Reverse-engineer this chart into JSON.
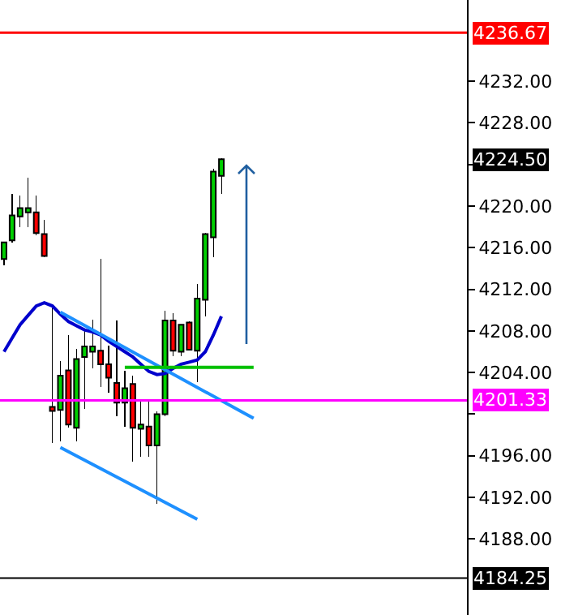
{
  "chart_data": {
    "type": "candlestick",
    "categories": [
      null,
      null,
      null,
      null,
      null,
      null,
      null,
      null,
      null,
      null,
      null,
      null,
      null,
      null,
      null,
      null,
      null,
      null,
      null,
      null,
      null,
      null,
      null,
      null,
      null,
      null,
      null,
      null,
      null,
      null,
      null,
      null,
      null,
      null,
      null,
      null,
      null,
      null,
      null,
      null,
      null,
      null,
      null,
      null,
      null,
      null,
      null,
      null,
      null,
      null,
      null,
      null,
      null,
      null,
      null,
      null,
      null,
      null
    ],
    "ohlc": [
      [
        4214.9,
        4216.5,
        4214.3,
        4216.5
      ],
      [
        4216.7,
        4221.2,
        4216.5,
        4219.1
      ],
      [
        4219.0,
        4221.0,
        4218.0,
        4219.8
      ],
      [
        4219.4,
        4222.7,
        4218.0,
        4219.8
      ],
      [
        4219.4,
        4221.0,
        4217.2,
        4217.4
      ],
      [
        4217.3,
        4218.7,
        4215.1,
        4215.2
      ],
      [
        4200.7,
        4210.2,
        4197.2,
        4200.3
      ],
      [
        4200.4,
        4205.1,
        4197.4,
        4203.7
      ],
      [
        4204.2,
        4207.6,
        4198.7,
        4199.0
      ],
      [
        4198.7,
        4206.3,
        4197.4,
        4205.3
      ],
      [
        4205.5,
        4208.2,
        4200.5,
        4206.5
      ],
      [
        4206.0,
        4209.1,
        4204.4,
        4206.5
      ],
      [
        4206.1,
        4214.9,
        4202.6,
        4204.8
      ],
      [
        4204.8,
        4206.6,
        4202.1,
        4203.5
      ],
      [
        4203.0,
        4209.0,
        4199.8,
        4201.1
      ],
      [
        4201.1,
        4204.2,
        4198.8,
        4202.5
      ],
      [
        4202.9,
        4203.7,
        4195.4,
        4198.7
      ],
      [
        4198.6,
        4201.3,
        4195.9,
        4199.0
      ],
      [
        4198.8,
        4201.3,
        4195.9,
        4197.0
      ],
      [
        4197.0,
        4200.3,
        4191.4,
        4200.0
      ],
      [
        4200.0,
        4209.9,
        4199.8,
        4209.0
      ],
      [
        4209.0,
        4209.7,
        4205.6,
        4206.1
      ],
      [
        4206.0,
        4208.6,
        4205.6,
        4208.6
      ],
      [
        4208.8,
        4208.9,
        4206.1,
        4206.2
      ],
      [
        4206.1,
        4212.5,
        4203.1,
        4211.1
      ],
      [
        4211.0,
        4217.4,
        4209.4,
        4217.3
      ],
      [
        4217.0,
        4223.6,
        4215.1,
        4223.3
      ],
      [
        4222.9,
        4224.6,
        4221.2,
        4224.5
      ],
      null,
      null,
      null,
      null,
      null,
      null,
      null,
      null,
      null,
      null,
      null,
      null,
      null,
      null,
      null,
      null,
      null,
      null,
      null,
      null,
      null,
      null,
      null,
      null,
      null,
      null,
      null,
      null,
      null,
      null
    ],
    "series": [
      {
        "type": "line",
        "color": "#0000cc",
        "values": [
          4206.0,
          4207.3,
          4208.6,
          4209.5,
          4210.4,
          4210.7,
          4210.4,
          4209.6,
          4208.9,
          4208.5,
          4208.1,
          4207.9,
          4207.6,
          4207.0,
          4206.5,
          4206.0,
          4205.5,
          4204.8,
          4204.1,
          4203.8,
          4203.9,
          4204.4,
          4204.8,
          4205.0,
          4205.2,
          4206.0,
          4207.6,
          4209.4,
          null,
          null,
          null,
          null,
          null,
          null,
          null,
          null,
          null,
          null,
          null,
          null,
          null,
          null,
          null,
          null,
          null,
          null,
          null,
          null,
          null,
          null,
          null,
          null,
          null,
          null,
          null,
          null,
          null,
          null
        ]
      },
      {
        "type": "line",
        "color": "#1e90ff",
        "values": [
          null,
          null,
          null,
          null,
          null,
          null,
          null,
          4209.8,
          null,
          null,
          null,
          null,
          null,
          null,
          null,
          null,
          null,
          null,
          null,
          null,
          null,
          null,
          null,
          null,
          null,
          null,
          null,
          null,
          null,
          null,
          null,
          4199.6,
          null,
          null,
          null,
          null,
          null,
          null,
          null,
          null,
          null,
          null,
          null,
          null,
          null,
          null,
          null,
          null,
          null,
          null,
          null,
          null,
          null,
          null,
          null,
          null,
          null,
          null
        ]
      },
      {
        "type": "line",
        "color": "#1e90ff",
        "values": [
          null,
          null,
          null,
          null,
          null,
          null,
          null,
          4196.8,
          null,
          null,
          null,
          null,
          null,
          null,
          null,
          null,
          null,
          null,
          null,
          null,
          null,
          null,
          null,
          null,
          4189.9,
          null,
          null,
          null,
          null,
          null,
          null,
          null,
          null,
          null,
          null,
          null,
          null,
          null,
          null,
          null,
          null,
          null,
          null,
          null,
          null,
          null,
          null,
          null,
          null,
          null,
          null,
          null,
          null,
          null,
          null,
          null,
          null,
          null
        ]
      },
      {
        "type": "line",
        "color": "#00c000",
        "values": [
          null,
          null,
          null,
          null,
          null,
          null,
          null,
          null,
          null,
          null,
          null,
          null,
          null,
          null,
          null,
          4204.5,
          null,
          null,
          null,
          null,
          null,
          null,
          null,
          null,
          null,
          null,
          null,
          null,
          null,
          null,
          null,
          4204.5,
          null,
          null,
          null,
          null,
          null,
          null,
          null,
          null,
          null,
          null,
          null,
          null,
          null,
          null,
          null,
          null,
          null,
          null,
          null,
          null,
          null,
          null,
          null,
          null,
          null,
          null
        ]
      }
    ],
    "ref_lines": [
      {
        "axis": "y",
        "value": 4236.67,
        "label": "4236.67",
        "color": "#ff0000"
      },
      {
        "axis": "y",
        "value": 4201.33,
        "label": "4201.33",
        "color": "#ff00ff"
      },
      {
        "axis": "y",
        "value": 4184.25,
        "label": "4184.25",
        "color": "#000000"
      }
    ],
    "annotations": [
      "4224.50"
    ],
    "ylim": [
      4180.7,
      4239.8
    ],
    "yticks": [
      {
        "value": 4188,
        "label": "4188.00"
      },
      {
        "value": 4192,
        "label": "4192.00"
      },
      {
        "value": 4196,
        "label": "4196.00"
      },
      {
        "value": 4200,
        "label": null
      },
      {
        "value": 4204,
        "label": "4204.00"
      },
      {
        "value": 4208,
        "label": "4208.00"
      },
      {
        "value": 4212,
        "label": "4212.00"
      },
      {
        "value": 4216,
        "label": "4216.00"
      },
      {
        "value": 4220,
        "label": "4220.00"
      },
      {
        "value": 4224,
        "label": null
      },
      {
        "value": 4228,
        "label": "4228.00"
      },
      {
        "value": 4232,
        "label": "4232.00"
      }
    ],
    "grid": false,
    "tick_labels": "y"
  }
}
